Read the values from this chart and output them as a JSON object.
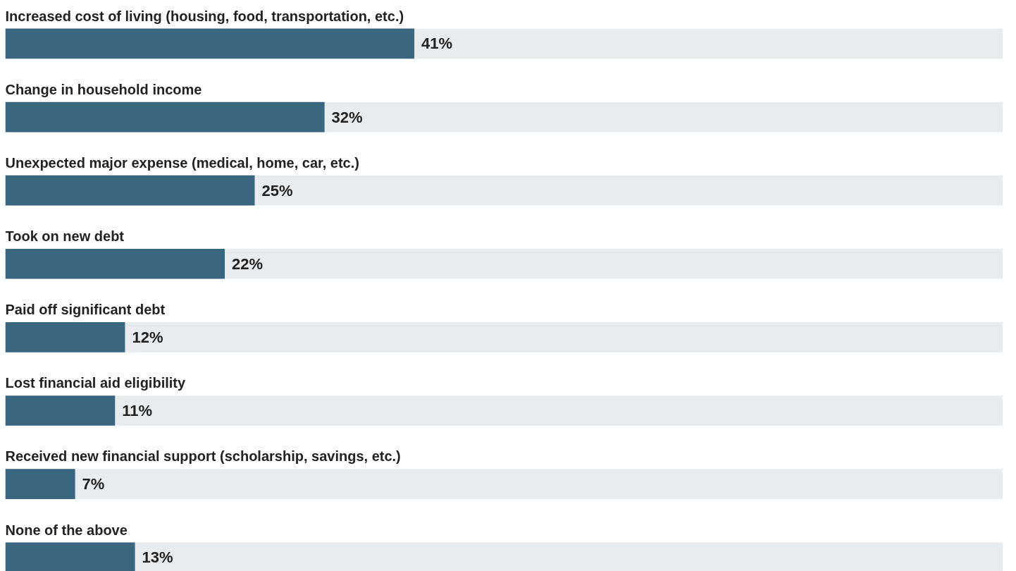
{
  "chart_data": {
    "type": "bar",
    "orientation": "horizontal",
    "categories": [
      "Increased cost of living (housing, food, transportation, etc.)",
      "Change in household income",
      "Unexpected major expense (medical, home, car, etc.)",
      "Took on new debt",
      "Paid off significant debt",
      "Lost financial aid eligibility",
      "Received new financial support (scholarship, savings, etc.)",
      "None of the above"
    ],
    "series": [
      {
        "color": "#3a6680",
        "values": [
          41,
          32,
          25,
          22,
          12,
          11,
          7,
          13
        ],
        "value_labels": [
          "41%",
          "32%",
          "25%",
          "22%",
          "12%",
          "11%",
          "7%",
          "13%"
        ]
      }
    ],
    "xlim": [
      0,
      100
    ],
    "bands": [
      {
        "axis": "x",
        "from": 0,
        "to": 100,
        "color": "#e8ecef"
      }
    ],
    "tick_labels": false,
    "grid": false
  }
}
